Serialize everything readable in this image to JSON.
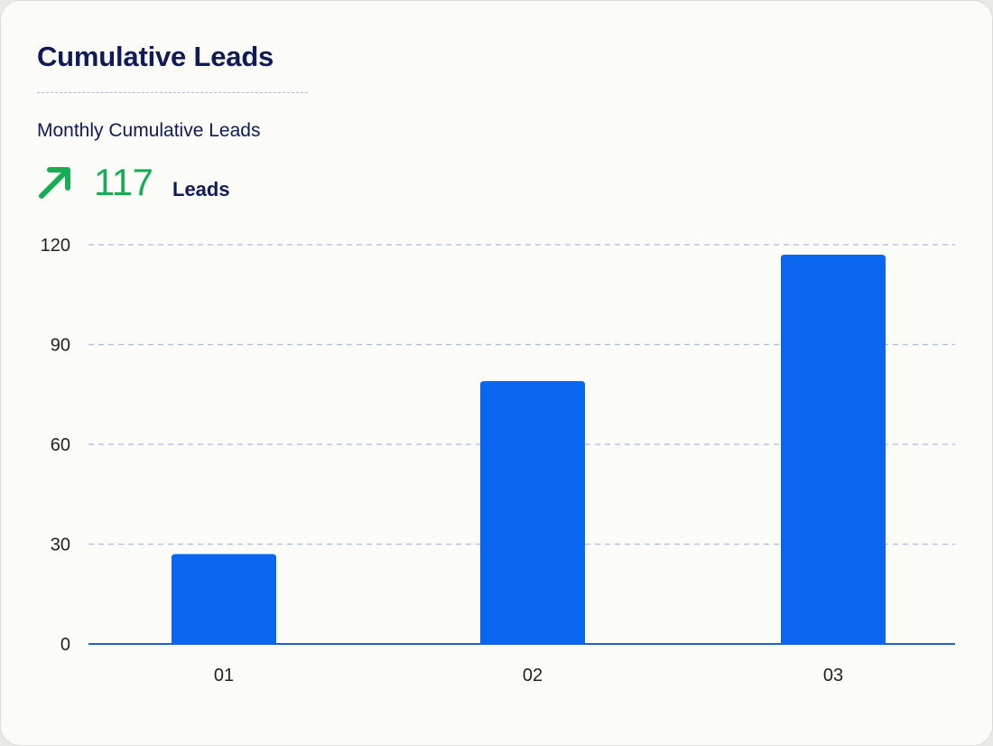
{
  "card": {
    "title": "Cumulative Leads",
    "subtitle": "Monthly Cumulative Leads",
    "kpi": {
      "value": "117",
      "unit": "Leads",
      "trend_icon": "arrow-up-right-icon",
      "trend_color": "#16ad55"
    }
  },
  "colors": {
    "title": "#101a55",
    "bar": "#0a66f0",
    "grid": "#a7bbe3",
    "axis": "#1f5fd6"
  },
  "chart_data": {
    "type": "bar",
    "categories": [
      "01",
      "02",
      "03"
    ],
    "values": [
      27,
      79,
      117
    ],
    "ylim": [
      0,
      120
    ],
    "yticks": [
      0,
      30,
      60,
      90,
      120
    ],
    "grid": true,
    "xlabel": "",
    "ylabel": ""
  }
}
